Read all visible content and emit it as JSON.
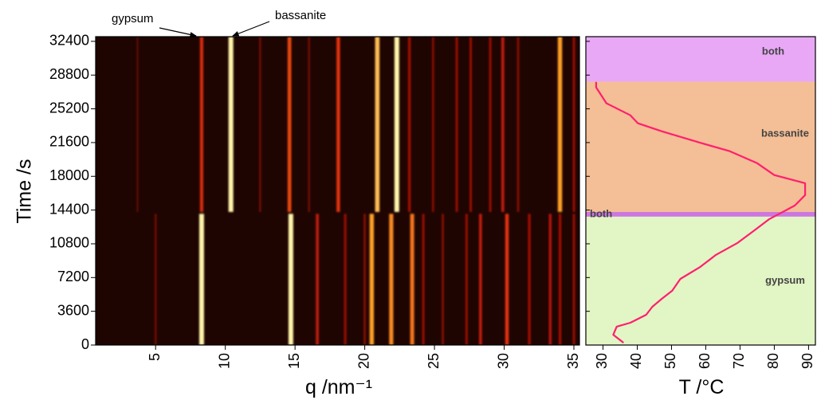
{
  "chart_data": [
    {
      "type": "heatmap",
      "y_label": "Time /s",
      "x_label": "q /nm⁻¹",
      "xlim": [
        0.7,
        35.4
      ],
      "ylim": [
        0,
        32900
      ],
      "xticks": [
        5,
        10,
        15,
        20,
        25,
        30,
        35
      ],
      "yticks": [
        0,
        3600,
        7200,
        10800,
        14400,
        18000,
        21600,
        25200,
        28800,
        32400
      ],
      "background": "#1e0502",
      "annotations": [
        "gypsum",
        "bassanite"
      ],
      "lines": [
        {
          "q": 8.3,
          "t0": 0,
          "t1": 14000,
          "intensity": 1.0
        },
        {
          "q": 14.7,
          "t0": 0,
          "t1": 14000,
          "intensity": 1.0
        },
        {
          "q": 16.6,
          "t0": 0,
          "t1": 14000,
          "intensity": 0.45
        },
        {
          "q": 18.6,
          "t0": 0,
          "t1": 14000,
          "intensity": 0.3
        },
        {
          "q": 20.0,
          "t0": 0,
          "t1": 14000,
          "intensity": 0.25
        },
        {
          "q": 20.5,
          "t0": 0,
          "t1": 14000,
          "intensity": 0.85
        },
        {
          "q": 21.9,
          "t0": 0,
          "t1": 14000,
          "intensity": 0.8
        },
        {
          "q": 23.4,
          "t0": 0,
          "t1": 14000,
          "intensity": 0.75
        },
        {
          "q": 24.2,
          "t0": 0,
          "t1": 14000,
          "intensity": 0.3
        },
        {
          "q": 25.6,
          "t0": 0,
          "t1": 14000,
          "intensity": 0.25
        },
        {
          "q": 27.3,
          "t0": 0,
          "t1": 14000,
          "intensity": 0.3
        },
        {
          "q": 28.3,
          "t0": 0,
          "t1": 14000,
          "intensity": 0.45
        },
        {
          "q": 30.2,
          "t0": 0,
          "t1": 14000,
          "intensity": 0.6
        },
        {
          "q": 31.8,
          "t0": 0,
          "t1": 14000,
          "intensity": 0.35
        },
        {
          "q": 33.3,
          "t0": 0,
          "t1": 14000,
          "intensity": 0.4
        },
        {
          "q": 34.0,
          "t0": 0,
          "t1": 14000,
          "intensity": 0.35
        },
        {
          "q": 35.0,
          "t0": 0,
          "t1": 14000,
          "intensity": 0.3
        },
        {
          "q": 5.0,
          "t0": 0,
          "t1": 14000,
          "intensity": 0.2
        },
        {
          "q": 8.3,
          "t0": 14200,
          "t1": 32900,
          "intensity": 0.55
        },
        {
          "q": 10.4,
          "t0": 14200,
          "t1": 32900,
          "intensity": 1.0
        },
        {
          "q": 14.6,
          "t0": 14200,
          "t1": 32900,
          "intensity": 0.65
        },
        {
          "q": 18.1,
          "t0": 14200,
          "t1": 32900,
          "intensity": 0.6
        },
        {
          "q": 20.9,
          "t0": 14200,
          "t1": 32900,
          "intensity": 0.9
        },
        {
          "q": 22.3,
          "t0": 14200,
          "t1": 32900,
          "intensity": 1.0
        },
        {
          "q": 23.2,
          "t0": 14200,
          "t1": 32900,
          "intensity": 0.35
        },
        {
          "q": 24.9,
          "t0": 14200,
          "t1": 32900,
          "intensity": 0.25
        },
        {
          "q": 26.6,
          "t0": 14200,
          "t1": 32900,
          "intensity": 0.3
        },
        {
          "q": 27.6,
          "t0": 14200,
          "t1": 32900,
          "intensity": 0.3
        },
        {
          "q": 29.0,
          "t0": 14200,
          "t1": 32900,
          "intensity": 0.3
        },
        {
          "q": 29.9,
          "t0": 14200,
          "t1": 32900,
          "intensity": 0.45
        },
        {
          "q": 31.0,
          "t0": 14200,
          "t1": 32900,
          "intensity": 0.25
        },
        {
          "q": 34.0,
          "t0": 14200,
          "t1": 32900,
          "intensity": 0.85
        },
        {
          "q": 35.0,
          "t0": 14200,
          "t1": 32900,
          "intensity": 0.3
        },
        {
          "q": 3.7,
          "t0": 14200,
          "t1": 32900,
          "intensity": 0.15
        },
        {
          "q": 12.5,
          "t0": 14200,
          "t1": 32900,
          "intensity": 0.2
        },
        {
          "q": 16.0,
          "t0": 14200,
          "t1": 32900,
          "intensity": 0.2
        }
      ]
    },
    {
      "type": "line",
      "x_label": "T /°C",
      "xlim": [
        25,
        92
      ],
      "ylim": [
        0,
        32900
      ],
      "xticks": [
        30,
        40,
        50,
        60,
        70,
        80,
        90
      ],
      "yticks": [
        0,
        3600,
        7200,
        10800,
        14400,
        18000,
        21600,
        25200,
        28800,
        32400
      ],
      "regions": [
        {
          "label": "gypsum",
          "t0": 0,
          "t1": 13700,
          "color": "#e2f5c4"
        },
        {
          "label": "both",
          "t0": 13700,
          "t1": 14200,
          "color": "#cc77e0"
        },
        {
          "label": "bassanite",
          "t0": 14200,
          "t1": 28100,
          "color": "#f4be96"
        },
        {
          "label": "both",
          "t0": 28100,
          "t1": 32900,
          "color": "#e8a8f6"
        }
      ],
      "series": [
        {
          "color": "#ff1f6e",
          "values": [
            36,
            33,
            34,
            38,
            42.6,
            44.4,
            47.2,
            50.2,
            52.6,
            58.4,
            63,
            69.3,
            74,
            78.6,
            83,
            86,
            89,
            89,
            80,
            75,
            67,
            58.8,
            47.2,
            40.2,
            38,
            31,
            28,
            28
          ],
          "time": [
            250,
            1100,
            1960,
            2380,
            3230,
            4080,
            4940,
            5790,
            7060,
            8340,
            9620,
            10900,
            12170,
            13450,
            14300,
            14890,
            16000,
            17270,
            18130,
            19400,
            20680,
            21530,
            22800,
            23660,
            24510,
            25790,
            27490,
            28080
          ]
        }
      ]
    }
  ]
}
